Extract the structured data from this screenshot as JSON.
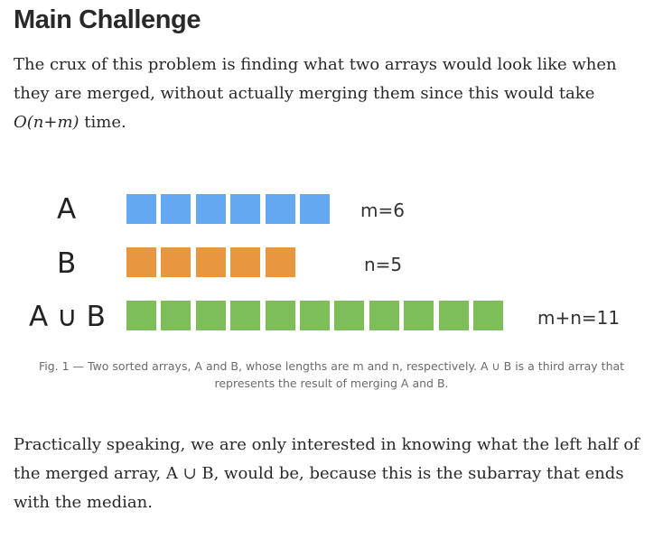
{
  "heading": "Main Challenge",
  "intro": {
    "line1": "The crux of this problem is finding what two arrays would look like when",
    "line2": "they are merged, without actually merging them since this would take",
    "complexity": "O(n+m)",
    "line3_suffix": " time."
  },
  "figure": {
    "rows": [
      {
        "label": "A",
        "count_label": "m=6",
        "length": 6,
        "color": "#64a8f2"
      },
      {
        "label": "B",
        "count_label": "n=5",
        "length": 5,
        "color": "#e8963f"
      },
      {
        "label": "A ∪ B",
        "count_label": "m+n=11",
        "length": 11,
        "color": "#7dbd5a"
      }
    ],
    "caption_line1": "Fig. 1 — Two sorted arrays, A and B, whose lengths are m and n, respectively. A ∪ B is a third array that",
    "caption_line2": "represents the result of merging A and B."
  },
  "outro": {
    "line1": "Practically speaking, we are only interested in knowing what the left half of",
    "line2": "the merged array, A ∪ B, would be, because this is the subarray that ends",
    "line3": "with the median."
  }
}
